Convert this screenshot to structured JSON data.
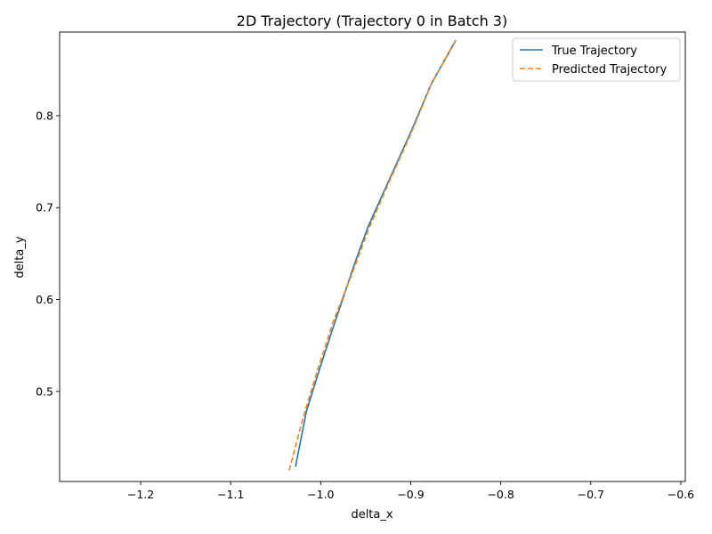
{
  "chart_data": {
    "type": "line",
    "title": "2D Trajectory (Trajectory 0 in Batch 3)",
    "xlabel": "delta_x",
    "ylabel": "delta_y",
    "xlim": [
      -1.29,
      -0.595
    ],
    "ylim": [
      0.402,
      0.891
    ],
    "xticks": [
      -1.2,
      -1.1,
      -1.0,
      -0.9,
      -0.8,
      -0.7,
      -0.6
    ],
    "xtick_labels": [
      "−1.2",
      "−1.1",
      "−1.0",
      "−0.9",
      "−0.8",
      "−0.7",
      "−0.6"
    ],
    "yticks": [
      0.5,
      0.6,
      0.7,
      0.8
    ],
    "ytick_labels": [
      "0.5",
      "0.6",
      "0.7",
      "0.8"
    ],
    "legend_position": "top-right",
    "series": [
      {
        "name": "True Trajectory",
        "color": "#1f77b4",
        "style": "solid",
        "x": [
          -1.028,
          -1.016,
          -1.001,
          -0.985,
          -0.962,
          -0.947,
          -0.924,
          -0.9,
          -0.877,
          -0.85
        ],
        "y": [
          0.418,
          0.478,
          0.525,
          0.573,
          0.64,
          0.68,
          0.73,
          0.782,
          0.835,
          0.882
        ]
      },
      {
        "name": "Predicted Trajectory",
        "color": "#ff7f0e",
        "style": "dashed",
        "x": [
          -1.035,
          -1.02,
          -1.003,
          -0.986,
          -0.963,
          -0.947,
          -0.924,
          -0.9,
          -0.877,
          -0.85
        ],
        "y": [
          0.414,
          0.47,
          0.525,
          0.576,
          0.634,
          0.676,
          0.728,
          0.78,
          0.835,
          0.882
        ]
      }
    ]
  }
}
